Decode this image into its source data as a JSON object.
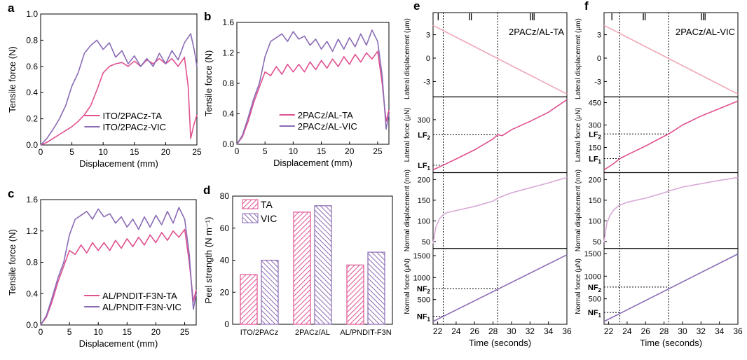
{
  "colors": {
    "ta": "#e0508f",
    "vic": "#8a6bb5",
    "ta_light": "#efa9b8",
    "vic_light": "#d7a9d6",
    "axis": "#000000"
  },
  "chart_data": [
    {
      "id": "a",
      "panel_label": "a",
      "type": "line",
      "xlabel": "Displacement (mm)",
      "ylabel": "Tensile force (N)",
      "xlim": [
        0,
        25
      ],
      "ylim": [
        0,
        1.0
      ],
      "xticks": [
        0,
        5,
        10,
        15,
        20,
        25
      ],
      "yticks": [
        0.0,
        0.2,
        0.4,
        0.6,
        0.8,
        1.0
      ],
      "ytick_labels": [
        "0.0",
        "0.2",
        "0.4",
        "0.6",
        "0.8",
        "1.0"
      ],
      "legend_position": "bottom-center",
      "series": [
        {
          "name": "ITO/2PACz-TA",
          "color_key": "ta",
          "x": [
            0,
            1,
            2,
            3,
            4,
            5,
            6,
            7,
            8,
            9,
            10,
            11,
            12,
            13,
            14,
            15,
            16,
            17,
            18,
            19,
            20,
            21,
            22,
            23,
            23.6,
            24,
            24.5,
            25
          ],
          "y": [
            0,
            0.02,
            0.05,
            0.08,
            0.11,
            0.14,
            0.18,
            0.23,
            0.3,
            0.42,
            0.55,
            0.6,
            0.62,
            0.63,
            0.6,
            0.64,
            0.6,
            0.65,
            0.62,
            0.66,
            0.62,
            0.66,
            0.6,
            0.67,
            0.45,
            0.05,
            0.15,
            0.23
          ]
        },
        {
          "name": "ITO/2PACz-VIC",
          "color_key": "vic",
          "x": [
            0,
            1,
            2,
            3,
            4,
            5,
            6,
            7,
            8,
            9,
            10,
            11,
            12,
            13,
            14,
            15,
            16,
            17,
            18,
            19,
            20,
            21,
            22,
            23,
            24,
            24.6,
            25
          ],
          "y": [
            0,
            0.05,
            0.12,
            0.2,
            0.3,
            0.45,
            0.55,
            0.7,
            0.76,
            0.8,
            0.73,
            0.78,
            0.67,
            0.72,
            0.62,
            0.68,
            0.6,
            0.66,
            0.6,
            0.7,
            0.62,
            0.72,
            0.65,
            0.78,
            0.85,
            0.72,
            0.6
          ]
        }
      ]
    },
    {
      "id": "b",
      "panel_label": "b",
      "type": "line",
      "xlabel": "Displacement (mm)",
      "ylabel": "Tensile force (N)",
      "xlim": [
        0,
        27
      ],
      "ylim": [
        0,
        1.6
      ],
      "xticks": [
        0,
        5,
        10,
        15,
        20,
        25
      ],
      "yticks": [
        0.0,
        0.4,
        0.8,
        1.2,
        1.6
      ],
      "ytick_labels": [
        "0.0",
        "0.4",
        "0.8",
        "1.2",
        "1.6"
      ],
      "legend_position": "bottom-center",
      "series": [
        {
          "name": "2PACz/AL-TA",
          "color_key": "ta",
          "x": [
            0,
            1,
            2,
            3,
            4,
            5,
            6,
            7,
            8,
            9,
            10,
            11,
            12,
            13,
            14,
            15,
            16,
            17,
            18,
            19,
            20,
            21,
            22,
            23,
            24,
            25,
            25.8,
            26.5,
            27
          ],
          "y": [
            0,
            0.1,
            0.3,
            0.55,
            0.75,
            0.95,
            0.9,
            1.02,
            0.92,
            1.05,
            0.95,
            1.05,
            0.95,
            1.08,
            0.98,
            1.1,
            1.0,
            1.12,
            1.02,
            1.15,
            1.05,
            1.18,
            1.08,
            1.2,
            1.12,
            1.22,
            0.8,
            0.3,
            0.45
          ]
        },
        {
          "name": "2PACz/AL-VIC",
          "color_key": "vic",
          "x": [
            0,
            1,
            2,
            3,
            4,
            5,
            6,
            7,
            8,
            9,
            10,
            11,
            12,
            13,
            14,
            15,
            16,
            17,
            18,
            19,
            20,
            21,
            22,
            23,
            24,
            25,
            25.8,
            26.5,
            27
          ],
          "y": [
            0,
            0.12,
            0.35,
            0.6,
            0.8,
            1.15,
            1.35,
            1.4,
            1.45,
            1.35,
            1.48,
            1.38,
            1.42,
            1.3,
            1.38,
            1.25,
            1.35,
            1.22,
            1.38,
            1.25,
            1.4,
            1.28,
            1.45,
            1.3,
            1.5,
            1.35,
            0.9,
            0.2,
            0.4
          ]
        }
      ]
    },
    {
      "id": "c",
      "panel_label": "c",
      "type": "line",
      "xlabel": "Displacement (mm)",
      "ylabel": "Tensile force (N)",
      "xlim": [
        0,
        27
      ],
      "ylim": [
        0,
        1.6
      ],
      "xticks": [
        0,
        5,
        10,
        15,
        20,
        25
      ],
      "yticks": [
        0.0,
        0.4,
        0.8,
        1.2,
        1.6
      ],
      "ytick_labels": [
        "0.0",
        "0.4",
        "0.8",
        "1.2",
        "1.6"
      ],
      "legend_position": "bottom-center",
      "series": [
        {
          "name": "AL/PNDIT-F3N-TA",
          "color_key": "ta",
          "x": [
            0,
            1,
            2,
            3,
            4,
            5,
            6,
            7,
            8,
            9,
            10,
            11,
            12,
            13,
            14,
            15,
            16,
            17,
            18,
            19,
            20,
            21,
            22,
            23,
            24,
            25,
            25.8,
            26.5,
            27
          ],
          "y": [
            0,
            0.1,
            0.3,
            0.55,
            0.75,
            0.95,
            0.9,
            1.02,
            0.92,
            1.05,
            0.95,
            1.05,
            0.95,
            1.08,
            0.98,
            1.1,
            1.0,
            1.12,
            1.02,
            1.15,
            1.05,
            1.18,
            1.08,
            1.2,
            1.12,
            1.22,
            0.8,
            0.3,
            0.45
          ]
        },
        {
          "name": "AL/PNDIT-F3N-VIC",
          "color_key": "vic",
          "x": [
            0,
            1,
            2,
            3,
            4,
            5,
            6,
            7,
            8,
            9,
            10,
            11,
            12,
            13,
            14,
            15,
            16,
            17,
            18,
            19,
            20,
            21,
            22,
            23,
            24,
            25,
            25.8,
            26.5,
            27
          ],
          "y": [
            0,
            0.12,
            0.35,
            0.6,
            0.8,
            1.15,
            1.35,
            1.4,
            1.45,
            1.35,
            1.48,
            1.38,
            1.42,
            1.3,
            1.38,
            1.25,
            1.35,
            1.22,
            1.38,
            1.25,
            1.4,
            1.28,
            1.45,
            1.3,
            1.5,
            1.35,
            0.9,
            0.2,
            0.4
          ]
        }
      ]
    },
    {
      "id": "d",
      "panel_label": "d",
      "type": "bar",
      "ylabel": "Peel strength (N m⁻¹)",
      "categories": [
        "ITO/2PACz",
        "2PACz/AL",
        "AL/PNDIT-F3N"
      ],
      "ylim": [
        0,
        80
      ],
      "yticks": [
        0,
        20,
        40,
        60,
        80
      ],
      "legend_position": "top-left",
      "series": [
        {
          "name": "TA",
          "color_key": "ta",
          "values": [
            31,
            70,
            37
          ]
        },
        {
          "name": "VIC",
          "color_key": "vic",
          "values": [
            40,
            74,
            45
          ]
        }
      ]
    },
    {
      "id": "e",
      "panel_label": "e",
      "type": "line",
      "title": "2PACz/AL-TA",
      "xlabel": "Time (seconds)",
      "xlim": [
        21.5,
        36
      ],
      "xticks": [
        22,
        24,
        26,
        28,
        30,
        32,
        34,
        36
      ],
      "stages": [
        "Ⅰ",
        "Ⅱ",
        "Ⅲ"
      ],
      "stage_bounds": [
        22.6,
        28.5
      ],
      "subplots": [
        {
          "ylabel": "Lateral displacement (μm)",
          "ylim": [
            -4.6,
            4.4
          ],
          "yticks": [
            -3,
            0,
            3
          ],
          "series": [
            {
              "color_key": "ta_light",
              "x": [
                21.5,
                36
              ],
              "y": [
                4.2,
                -4.6
              ]
            }
          ]
        },
        {
          "ylabel": "Lateral force (μN)",
          "ylim": [
            0,
            420
          ],
          "yticks": [
            300
          ],
          "markers": [
            {
              "label": "LF",
              "sub": "2",
              "x": 28.5,
              "y": 210
            },
            {
              "label": "LF",
              "sub": "1",
              "x": 22.6,
              "y": 28
            }
          ],
          "series": [
            {
              "color_key": "ta",
              "x": [
                21.5,
                22.6,
                24,
                26,
                28,
                28.5,
                29,
                30,
                32,
                34,
                36
              ],
              "y": [
                0,
                28,
                65,
                120,
                185,
                210,
                205,
                240,
                290,
                345,
                420
              ]
            }
          ]
        },
        {
          "ylabel": "Normal displacement (nm)",
          "ylim": [
            40,
            210
          ],
          "yticks": [
            50,
            100,
            150,
            200
          ],
          "series": [
            {
              "color_key": "vic_light",
              "x": [
                21.5,
                21.8,
                22.2,
                22.6,
                23,
                24,
                26,
                28,
                28.5,
                30,
                32,
                34,
                36
              ],
              "y": [
                45,
                85,
                105,
                115,
                120,
                125,
                135,
                148,
                155,
                168,
                180,
                192,
                205
              ]
            }
          ]
        },
        {
          "ylabel": "Normal force (μN)",
          "ylim": [
            0,
            1600
          ],
          "yticks": [
            500,
            1000,
            1500
          ],
          "markers": [
            {
              "label": "NF",
              "sub": "2",
              "x": 28.5,
              "y": 750
            },
            {
              "label": "NF",
              "sub": "1",
              "x": 22.6,
              "y": 120
            }
          ],
          "series": [
            {
              "color_key": "vic",
              "x": [
                21.5,
                36
              ],
              "y": [
                0,
                1520
              ]
            }
          ]
        }
      ]
    },
    {
      "id": "f",
      "panel_label": "f",
      "type": "line",
      "title": "2PACz/AL-VIC",
      "xlabel": "Time (seconds)",
      "xlim": [
        21.5,
        36
      ],
      "xticks": [
        22,
        24,
        26,
        28,
        30,
        32,
        34,
        36
      ],
      "stages": [
        "Ⅰ",
        "Ⅱ",
        "Ⅲ"
      ],
      "stage_bounds": [
        23.2,
        28.5
      ],
      "subplots": [
        {
          "ylabel": "Lateral displacement (μm)",
          "ylim": [
            -4.6,
            4.4
          ],
          "yticks": [
            -3,
            0,
            3
          ],
          "series": [
            {
              "color_key": "ta_light",
              "x": [
                21.5,
                36
              ],
              "y": [
                4.2,
                -4.6
              ]
            }
          ]
        },
        {
          "ylabel": "Lateral force (μN)",
          "ylim": [
            0,
            470
          ],
          "yticks": [
            150,
            300,
            450
          ],
          "markers": [
            {
              "label": "LF",
              "sub": "2",
              "x": 28.5,
              "y": 240
            },
            {
              "label": "LF",
              "sub": "1",
              "x": 23.2,
              "y": 75
            }
          ],
          "series": [
            {
              "color_key": "ta",
              "x": [
                21.5,
                22.5,
                23.2,
                24,
                26,
                28,
                28.5,
                30,
                32,
                34,
                36
              ],
              "y": [
                0,
                40,
                75,
                100,
                160,
                225,
                240,
                300,
                360,
                410,
                460
              ]
            }
          ]
        },
        {
          "ylabel": "Normal displacement (nm)",
          "ylim": [
            40,
            210
          ],
          "yticks": [
            50,
            100,
            150,
            200
          ],
          "series": [
            {
              "color_key": "vic_light",
              "x": [
                21.5,
                21.8,
                22.2,
                22.6,
                23.2,
                24,
                26,
                28,
                28.5,
                30,
                32,
                34,
                36
              ],
              "y": [
                48,
                95,
                115,
                128,
                138,
                145,
                155,
                168,
                172,
                182,
                190,
                198,
                205
              ]
            }
          ]
        },
        {
          "ylabel": "Normal force (μN)",
          "ylim": [
            0,
            1550
          ],
          "yticks": [
            500,
            1000,
            1500
          ],
          "markers": [
            {
              "label": "NF",
              "sub": "2",
              "x": 28.5,
              "y": 760
            },
            {
              "label": "NF",
              "sub": "1",
              "x": 23.2,
              "y": 200
            }
          ],
          "series": [
            {
              "color_key": "vic",
              "x": [
                21.5,
                36
              ],
              "y": [
                0,
                1490
              ]
            }
          ]
        }
      ]
    }
  ]
}
